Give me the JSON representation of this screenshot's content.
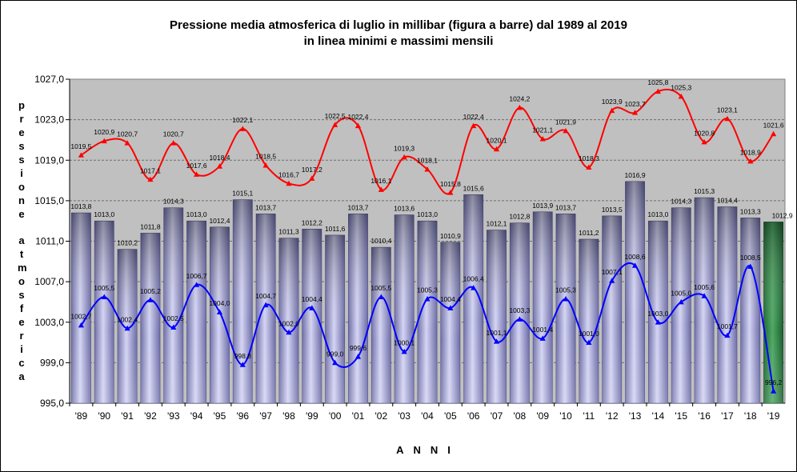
{
  "chart_data": {
    "type": "bar",
    "title_line1": "Pressione media atmosferica di luglio in millibar (figura a barre) dal 1989 al 2019",
    "title_line2": "in linea minimi e massimi mensili",
    "xlabel": "ANNI",
    "ylabel": "pressione atmosferica",
    "ylim": [
      995.0,
      1027.0
    ],
    "yticks": [
      "995,0",
      "999,0",
      "1003,0",
      "1007,0",
      "1011,0",
      "1015,0",
      "1019,0",
      "1023,0",
      "1027,0"
    ],
    "categories": [
      "'89",
      "'90",
      "'91",
      "'92",
      "'93",
      "'94",
      "'95",
      "'96",
      "'97",
      "'98",
      "'99",
      "'00",
      "'01",
      "'02",
      "'03",
      "'04",
      "'05",
      "'06",
      "'07",
      "'08",
      "'09",
      "'10",
      "'11",
      "'12",
      "'13",
      "'14",
      "'15",
      "'16",
      "'17",
      "'18",
      "'19"
    ],
    "series": [
      {
        "name": "media",
        "kind": "bar",
        "color": "#8e8ec8",
        "highlight_color": "#2f8a4a",
        "values": [
          1013.8,
          1013.0,
          1010.2,
          1011.8,
          1014.3,
          1013.0,
          1012.4,
          1015.1,
          1013.7,
          1011.3,
          1012.2,
          1011.6,
          1013.7,
          1010.4,
          1013.6,
          1013.0,
          1010.9,
          1015.6,
          1012.1,
          1012.8,
          1013.9,
          1013.7,
          1011.2,
          1013.5,
          1016.9,
          1013.0,
          1014.3,
          1015.3,
          1014.4,
          1013.3,
          1012.9
        ],
        "labels": [
          "1013,8",
          "1013,0",
          "1010,2",
          "1011,8",
          "1014,3",
          "1013,0",
          "1012,4",
          "1015,1",
          "1013,7",
          "1011,3",
          "1012,2",
          "1011,6",
          "1013,7",
          "1010,4",
          "1013,6",
          "1013,0",
          "1010,9",
          "1015,6",
          "1012,1",
          "1012,8",
          "1013,9",
          "1013,7",
          "1011,2",
          "1013,5",
          "1016,9",
          "1013,0",
          "1014,3",
          "1015,3",
          "1014,4",
          "1013,3",
          "1012,9"
        ]
      },
      {
        "name": "massimi",
        "kind": "line",
        "color": "#ff0000",
        "values": [
          1019.5,
          1020.9,
          1020.7,
          1017.1,
          1020.7,
          1017.6,
          1018.4,
          1022.1,
          1018.5,
          1016.7,
          1017.2,
          1022.5,
          1022.4,
          1016.1,
          1019.3,
          1018.1,
          1015.8,
          1022.4,
          1020.1,
          1024.2,
          1021.1,
          1021.9,
          1018.3,
          1023.9,
          1023.7,
          1025.8,
          1025.3,
          1020.8,
          1023.1,
          1018.9,
          1021.6
        ],
        "labels": [
          "1019,5",
          "1020,9",
          "1020,7",
          "1017,1",
          "1020,7",
          "1017,6",
          "1018,4",
          "1022,1",
          "1018,5",
          "1016,7",
          "1017,2",
          "1022,5",
          "1022,4",
          "1016,1",
          "1019,3",
          "1018,1",
          "1015,8",
          "1022,4",
          "1020,1",
          "1024,2",
          "1021,1",
          "1021,9",
          "1018,3",
          "1023,9",
          "1023,7",
          "1025,8",
          "1025,3",
          "1020,8",
          "1023,1",
          "1018,9",
          "1021,6"
        ]
      },
      {
        "name": "minimi",
        "kind": "line",
        "color": "#0000ff",
        "values": [
          1002.7,
          1005.5,
          1002.4,
          1005.2,
          1002.5,
          1006.7,
          1004.0,
          998.8,
          1004.7,
          1002.0,
          1004.4,
          999.0,
          999.6,
          1005.5,
          1000.1,
          1005.3,
          1004.4,
          1006.4,
          1001.1,
          1003.3,
          1001.4,
          1005.3,
          1001.0,
          1007.1,
          1008.6,
          1003.0,
          1005.0,
          1005.6,
          1001.7,
          1008.5,
          996.2
        ],
        "labels": [
          "1002,7",
          "1005,5",
          "1002,4",
          "1005,2",
          "1002,5",
          "1006,7",
          "1004,0",
          "998,8",
          "1004,7",
          "1002,0",
          "1004,4",
          "999,0",
          "999,6",
          "1005,5",
          "1000,1",
          "1005,3",
          "1004,4",
          "1006,4",
          "1001,1",
          "1003,3",
          "1001,4",
          "1005,3",
          "1001,0",
          "1007,1",
          "1008,6",
          "1003,0",
          "1005,0",
          "1005,6",
          "1001,7",
          "1008,5",
          "996,2"
        ]
      }
    ]
  }
}
